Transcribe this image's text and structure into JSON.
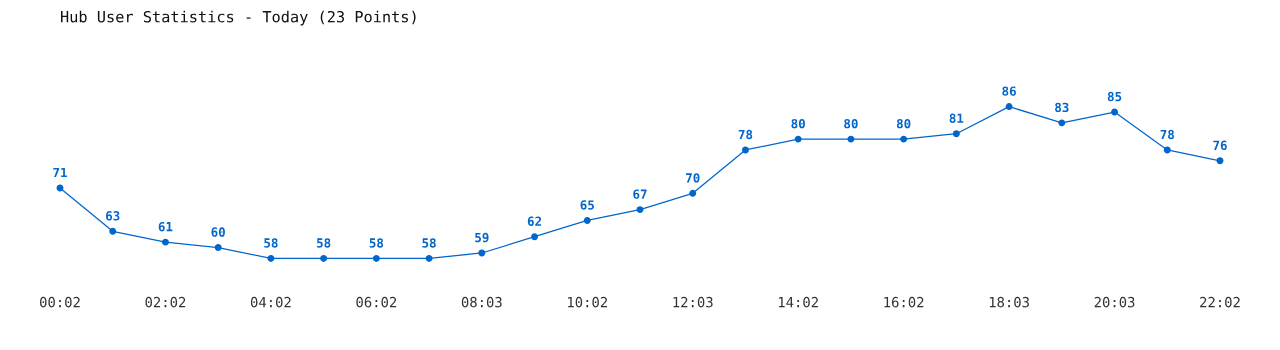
{
  "chart_data": {
    "type": "line",
    "title": "Hub User Statistics - Today (23 Points)",
    "categories": [
      "00:02",
      null,
      "02:02",
      null,
      "04:02",
      null,
      "06:02",
      null,
      "08:03",
      null,
      "10:02",
      null,
      "12:03",
      null,
      "14:02",
      null,
      "16:02",
      null,
      "18:03",
      null,
      "20:03",
      null,
      "22:02"
    ],
    "series": [
      {
        "color": "#0066cc",
        "values": [
          71,
          63,
          61,
          60,
          58,
          58,
          58,
          58,
          59,
          62,
          65,
          67,
          70,
          78,
          80,
          80,
          80,
          81,
          86,
          83,
          85,
          78,
          76
        ]
      }
    ],
    "tick_labels": "x",
    "data_labels": true,
    "marker": "circle",
    "line_style": "solid",
    "grid": false,
    "legend": false
  }
}
